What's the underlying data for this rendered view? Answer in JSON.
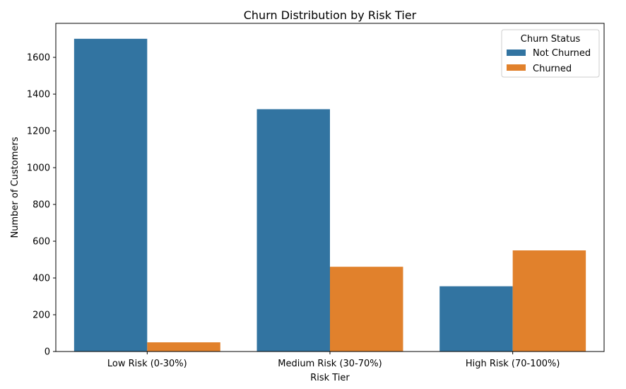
{
  "chart_data": {
    "type": "bar",
    "title": "Churn Distribution by Risk Tier",
    "xlabel": "Risk Tier",
    "ylabel": "Number of Customers",
    "categories": [
      "Low Risk (0-30%)",
      "Medium Risk (30-70%)",
      "High Risk (70-100%)"
    ],
    "series": [
      {
        "name": "Not Churned",
        "color": "#3274a1",
        "values": [
          1701,
          1318,
          355
        ]
      },
      {
        "name": "Churned",
        "color": "#e1812c",
        "values": [
          50,
          461,
          550
        ]
      }
    ],
    "ylim": [
      0,
      1785
    ],
    "yticks": [
      0,
      200,
      400,
      600,
      800,
      1000,
      1200,
      1400,
      1600
    ],
    "legend": {
      "title": "Churn Status",
      "placement": "top-right"
    },
    "grid": false
  }
}
